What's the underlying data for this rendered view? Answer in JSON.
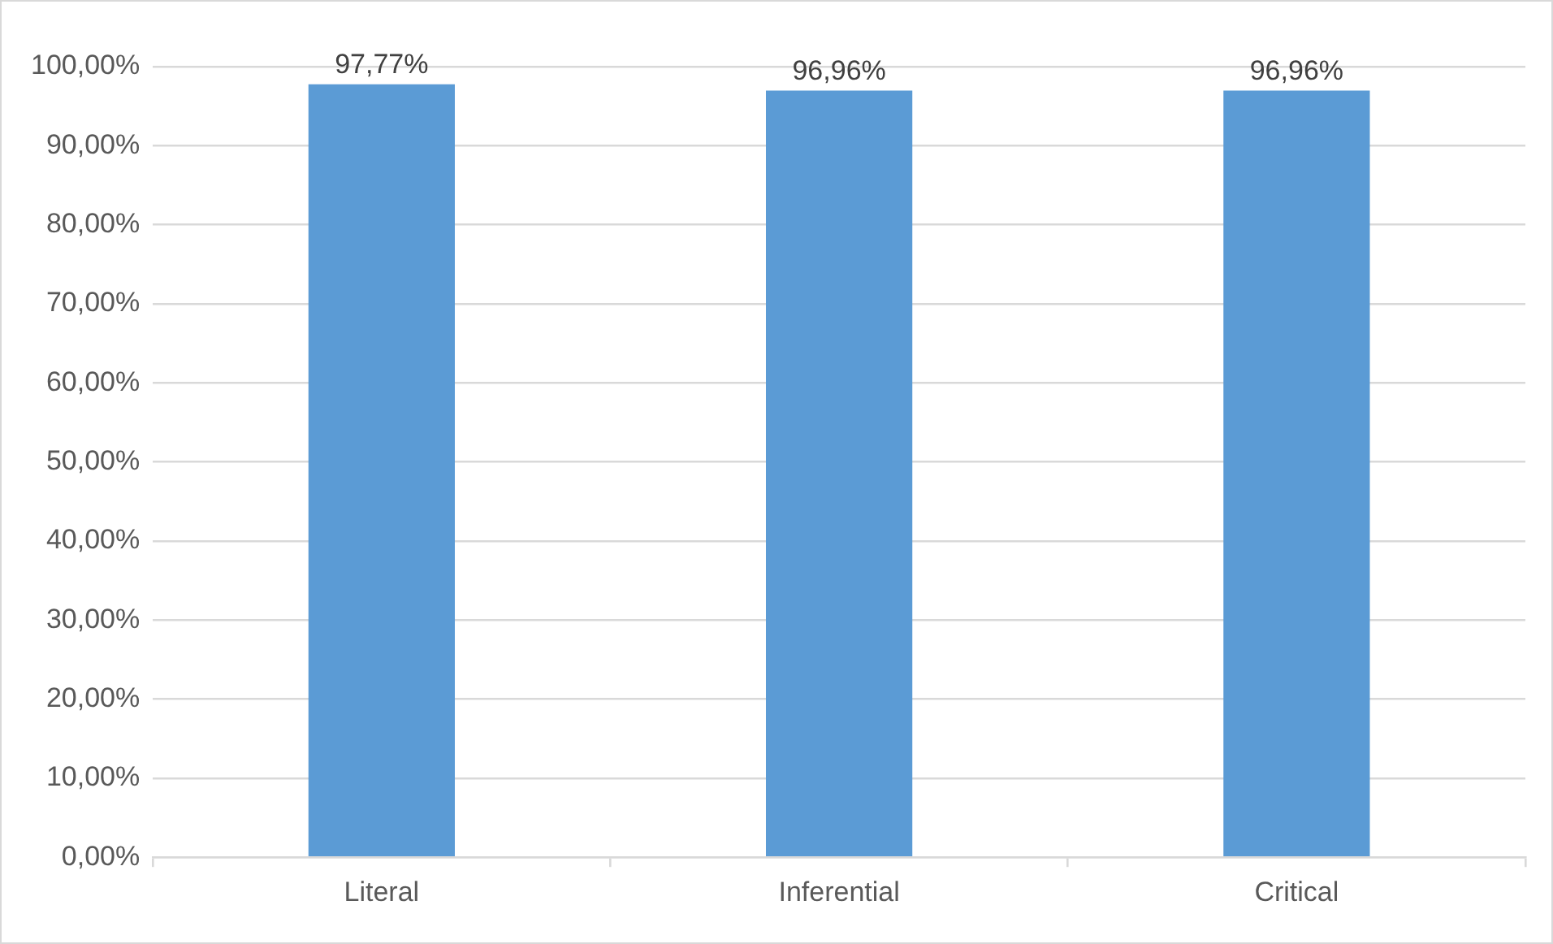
{
  "chart_data": {
    "type": "bar",
    "categories": [
      "Literal",
      "Inferential",
      "Critical"
    ],
    "values": [
      97.77,
      96.96,
      96.96
    ],
    "color": "#5b9bd5",
    "value_labels": [
      "97,77%",
      "96,96%",
      "96,96%"
    ],
    "ylim": [
      0,
      100
    ],
    "yticks": [
      {
        "value": 0,
        "label": "0,00%"
      },
      {
        "value": 10,
        "label": "10,00%"
      },
      {
        "value": 20,
        "label": "20,00%"
      },
      {
        "value": 30,
        "label": "30,00%"
      },
      {
        "value": 40,
        "label": "40,00%"
      },
      {
        "value": 50,
        "label": "50,00%"
      },
      {
        "value": 60,
        "label": "60,00%"
      },
      {
        "value": 70,
        "label": "70,00%"
      },
      {
        "value": 80,
        "label": "80,00%"
      },
      {
        "value": 90,
        "label": "90,00%"
      },
      {
        "value": 100,
        "label": "100,00%"
      }
    ],
    "grid": "y",
    "legend": false
  }
}
